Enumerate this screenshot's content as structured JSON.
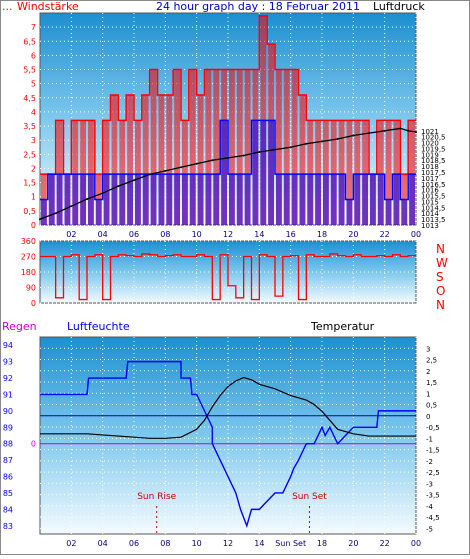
{
  "chart_data": [
    {
      "type": "line",
      "panel": "wind-and-pressure",
      "title": "24 hour graph day : 18 Februar 2011",
      "left_label": "Windstärke",
      "left_label_prefix": "...",
      "right_label": "Luftdruck",
      "x_ticks": [
        "02",
        "04",
        "06",
        "08",
        "10",
        "12",
        "14",
        "16",
        "18",
        "20",
        "22",
        "00"
      ],
      "ylim_left": [
        0,
        7.5
      ],
      "y_ticks_left": [
        "0",
        "0,5",
        "1",
        "1,5",
        "2",
        "2,5",
        "3",
        "3,5",
        "4",
        "4,5",
        "5",
        "5,5",
        "6",
        "6,5",
        "7"
      ],
      "ylim_right": [
        1013,
        1031
      ],
      "y_ticks_right": [
        "1013",
        "1013,5",
        "1014",
        "1014,5",
        "1015",
        "1015,5",
        "1016",
        "1016,5",
        "1017",
        "1017,5",
        "1018",
        "1018,5",
        "1019",
        "1019,5",
        "1020",
        "1020,5",
        "1021"
      ],
      "grid": true,
      "colors": {
        "gust": "#ff0000",
        "average": "#0000ff",
        "pressure": "#000000"
      },
      "series": [
        {
          "role": "gust",
          "x": [
            0,
            0.5,
            1,
            1.5,
            2,
            2.5,
            3,
            3.5,
            4,
            4.5,
            5,
            5.5,
            6,
            6.5,
            7,
            7.5,
            8,
            8.5,
            9,
            9.5,
            10,
            10.5,
            11,
            11.5,
            12,
            12.5,
            13,
            13.5,
            14,
            14.5,
            15,
            15.5,
            16,
            16.5,
            17,
            17.5,
            18,
            18.5,
            19,
            19.5,
            20,
            20.5,
            21,
            21.5,
            22,
            22.5,
            23,
            23.5
          ],
          "values": [
            1.8,
            1.8,
            3.7,
            1.8,
            3.7,
            3.7,
            3.7,
            1.8,
            3.7,
            4.6,
            3.7,
            4.6,
            3.7,
            4.6,
            5.5,
            4.6,
            4.6,
            5.5,
            3.7,
            5.5,
            4.6,
            5.5,
            5.5,
            5.5,
            5.5,
            5.5,
            5.5,
            5.5,
            7.4,
            6.4,
            5.5,
            5.5,
            5.5,
            4.6,
            3.7,
            3.7,
            3.7,
            3.7,
            3.7,
            3.7,
            3.7,
            3.7,
            1.8,
            3.7,
            3.7,
            3.7,
            1.8,
            3.7
          ]
        },
        {
          "role": "average",
          "x": [
            0,
            0.5,
            1,
            1.5,
            2,
            2.5,
            3,
            3.5,
            4,
            4.5,
            5,
            5.5,
            6,
            6.5,
            7,
            7.5,
            8,
            8.5,
            9,
            9.5,
            10,
            10.5,
            11,
            11.5,
            12,
            12.5,
            13,
            13.5,
            14,
            14.5,
            15,
            15.5,
            16,
            16.5,
            17,
            17.5,
            18,
            18.5,
            19,
            19.5,
            20,
            20.5,
            21,
            21.5,
            22,
            22.5,
            23,
            23.5
          ],
          "values": [
            0.9,
            1.8,
            1.8,
            1.8,
            1.8,
            1.8,
            1.8,
            0.9,
            1.8,
            1.8,
            1.8,
            1.8,
            1.8,
            1.8,
            1.8,
            1.8,
            1.8,
            1.8,
            1.8,
            1.8,
            1.8,
            1.8,
            1.8,
            3.7,
            1.8,
            1.8,
            1.8,
            3.7,
            3.7,
            3.7,
            1.8,
            1.8,
            1.8,
            1.8,
            1.8,
            1.8,
            1.8,
            1.8,
            1.8,
            0.9,
            1.8,
            1.8,
            1.8,
            1.8,
            0.9,
            1.8,
            0.9,
            1.8
          ]
        },
        {
          "role": "pressure",
          "x": [
            0,
            1,
            2,
            3,
            4,
            5,
            6,
            7,
            8,
            9,
            10,
            11,
            12,
            13,
            14,
            15,
            16,
            17,
            18,
            19,
            20,
            21,
            22,
            23,
            23.5,
            24
          ],
          "values": [
            1013.5,
            1014.0,
            1014.6,
            1015.2,
            1015.7,
            1016.3,
            1016.8,
            1017.3,
            1017.6,
            1017.9,
            1018.2,
            1018.5,
            1018.7,
            1018.9,
            1019.2,
            1019.4,
            1019.6,
            1019.9,
            1020.1,
            1020.3,
            1020.6,
            1020.8,
            1021.0,
            1021.2,
            1021.0,
            1020.9
          ]
        }
      ]
    },
    {
      "type": "line",
      "panel": "wind-direction",
      "ylim": [
        0,
        360
      ],
      "y_ticks": [
        "0",
        "90",
        "180",
        "270",
        "360"
      ],
      "compass_labels": [
        "N",
        "W",
        "S",
        "O",
        "N"
      ],
      "color": "#ff0000",
      "series": [
        {
          "role": "direction",
          "x": [
            0,
            0.5,
            1,
            1.5,
            2,
            2.5,
            3,
            3.5,
            4,
            4.5,
            5,
            5.5,
            6,
            6.5,
            7,
            7.5,
            8,
            8.5,
            9,
            9.5,
            10,
            10.5,
            11,
            11.5,
            12,
            12.5,
            13,
            13.5,
            14,
            14.5,
            15,
            15.5,
            16,
            16.5,
            17,
            17.5,
            18,
            18.5,
            19,
            19.5,
            20,
            20.5,
            21,
            21.5,
            22,
            22.5,
            23,
            23.5
          ],
          "values": [
            270,
            270,
            30,
            270,
            280,
            20,
            270,
            280,
            20,
            270,
            280,
            275,
            270,
            285,
            280,
            270,
            275,
            280,
            270,
            270,
            280,
            270,
            20,
            280,
            100,
            30,
            270,
            20,
            280,
            270,
            40,
            270,
            275,
            20,
            280,
            270,
            270,
            285,
            275,
            270,
            280,
            270,
            270,
            275,
            270,
            280,
            270,
            275
          ]
        }
      ]
    },
    {
      "type": "line",
      "panel": "rain-humidity-temperature",
      "left_label": "Regen",
      "middle_label": "Luftfeuchte",
      "right_label": "Temperatur",
      "rain_ylim": [
        0,
        1
      ],
      "rain_tick": "0",
      "humidity_ylim": [
        82.5,
        94.5
      ],
      "humidity_ticks": [
        "83",
        "84",
        "85",
        "86",
        "87",
        "88",
        "89",
        "90",
        "91",
        "92",
        "93",
        "94"
      ],
      "temperature_ylim": [
        -5.25,
        3.5
      ],
      "temperature_ticks": [
        "-5",
        "-4,5",
        "-4",
        "-3,5",
        "-3",
        "-2,5",
        "-2",
        "-1,5",
        "-1",
        "-0,5",
        "0",
        "0,5",
        "1",
        "1,5",
        "2",
        "2,5",
        "3"
      ],
      "x_ticks": [
        "02",
        "04",
        "06",
        "08",
        "10",
        "12",
        "14",
        "Sun Set",
        "18",
        "20",
        "22",
        "00"
      ],
      "annotations": [
        {
          "label": "Sun Rise",
          "x": 7.45
        },
        {
          "label": "Sun Set",
          "x": 17.2
        }
      ],
      "colors": {
        "humidity": "#0000ff",
        "temperature": "#000000",
        "dewline": "#0000aa",
        "rain": "#cc00cc"
      },
      "series": [
        {
          "role": "humidity",
          "x": [
            0,
            1,
            2,
            3,
            3.1,
            4,
            5,
            5.5,
            5.6,
            7,
            8,
            9,
            9,
            9.6,
            9.7,
            10,
            10.5,
            11,
            11,
            12,
            12.5,
            12.8,
            13.0,
            13.2,
            13.5,
            14,
            14.5,
            15,
            15.5,
            16,
            16.2,
            16.5,
            17,
            17.5,
            18,
            18.2,
            18.5,
            19,
            19.5,
            20,
            21,
            21.5,
            21.6,
            22,
            23,
            24
          ],
          "values": [
            91,
            91,
            91,
            91,
            92,
            92,
            92,
            92,
            93,
            93,
            93,
            93,
            92,
            92,
            91,
            91,
            90,
            89,
            88,
            86,
            85,
            84,
            83.5,
            83,
            84,
            84,
            84.5,
            85,
            85,
            86,
            86.5,
            87,
            88,
            88,
            89,
            88.5,
            89,
            88,
            88.5,
            89,
            89,
            89,
            90,
            90,
            90,
            90
          ]
        },
        {
          "role": "temperature",
          "x": [
            0,
            1,
            2,
            3,
            4,
            5,
            6,
            7,
            8,
            9,
            10,
            10.5,
            11,
            11.5,
            12,
            12.5,
            13,
            13.5,
            14,
            15,
            16,
            16.5,
            17,
            17.5,
            18,
            18.5,
            19,
            20,
            21,
            22,
            23,
            24
          ],
          "values": [
            -0.8,
            -0.8,
            -0.8,
            -0.8,
            -0.85,
            -0.9,
            -0.95,
            -1.0,
            -1.0,
            -0.95,
            -0.6,
            -0.2,
            0.4,
            0.9,
            1.3,
            1.55,
            1.7,
            1.6,
            1.4,
            1.2,
            0.9,
            0.8,
            0.7,
            0.5,
            0.2,
            -0.2,
            -0.6,
            -0.8,
            -0.9,
            -0.9,
            -0.9,
            -0.9
          ]
        },
        {
          "role": "dew-reference",
          "x": [
            0,
            24
          ],
          "values": [
            0,
            0
          ]
        },
        {
          "role": "rain",
          "x": [
            0,
            24
          ],
          "values": [
            0,
            0
          ]
        }
      ]
    }
  ]
}
